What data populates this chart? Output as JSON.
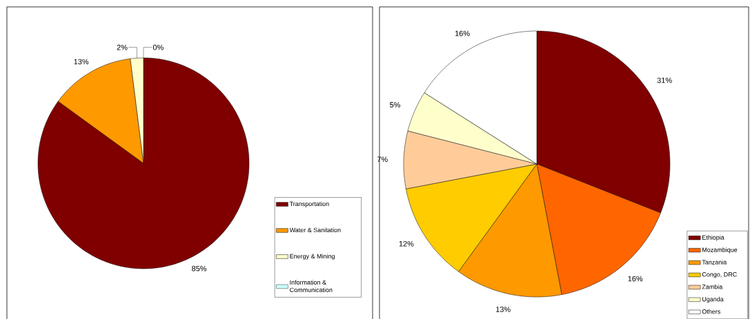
{
  "chart_data": [
    {
      "type": "pie",
      "categories": [
        "Transportation",
        "Water & Sanitation",
        "Energy & Mining",
        "Information & Communication"
      ],
      "values": [
        85,
        13,
        2,
        0
      ],
      "colors": [
        "#800000",
        "#ff9900",
        "#ffffcc",
        "#ccffff"
      ],
      "value_labels": [
        "85%",
        "13%",
        "2%",
        "0%"
      ],
      "legend": "bottom right"
    },
    {
      "type": "pie",
      "categories": [
        "Ethiopia",
        "Mozambique",
        "Tanzania",
        "Congo, DRC",
        "Zambia",
        "Uganda",
        "Others"
      ],
      "values": [
        31,
        16,
        13,
        12,
        7,
        5,
        16
      ],
      "colors": [
        "#800000",
        "#ff6600",
        "#ff9900",
        "#ffcc00",
        "#ffcc99",
        "#ffffcc",
        "#ffffff"
      ],
      "value_labels": [
        "31%",
        "16%",
        "13%",
        "12%",
        "7%",
        "5%",
        "16%"
      ],
      "legend": "bottom right"
    }
  ]
}
